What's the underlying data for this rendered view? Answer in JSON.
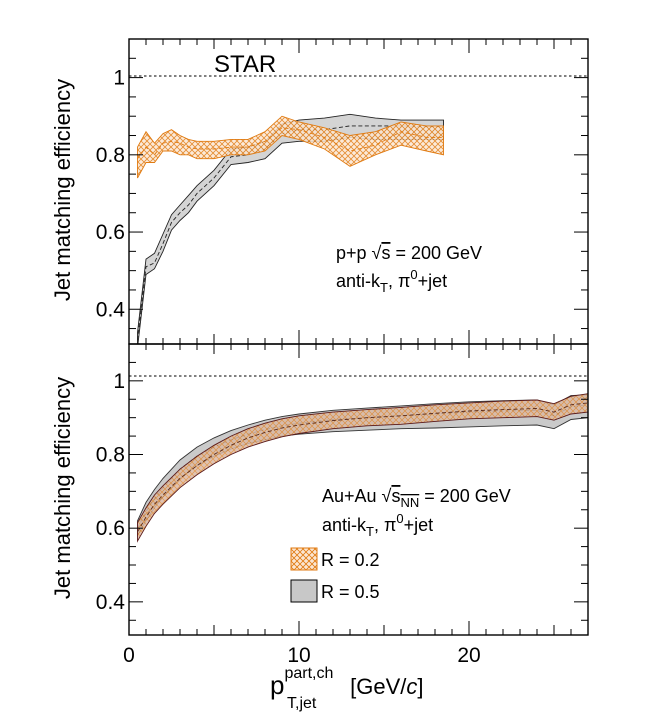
{
  "chart_data": [
    {
      "type": "area",
      "panel": "top",
      "title": "",
      "experiment_label": "STAR",
      "annotations": [
        "p+p √s = 200 GeV",
        "anti-kT, π0+jet"
      ],
      "ylabel": "Jet matching efficiency",
      "xlabel": "p_T,jet^part,ch [GeV/c]",
      "xlim": [
        0,
        27
      ],
      "ylim": [
        0.31,
        1.1
      ],
      "yticks": [
        0.4,
        0.6,
        0.8,
        1
      ],
      "yticklabels": [
        "0.4",
        "0.6",
        "0.8",
        "1"
      ],
      "reference_line": 1.0,
      "series": [
        {
          "name": "R = 0.2",
          "color": "#e07a10",
          "style": "hatched band",
          "x": [
            0.5,
            1.0,
            1.5,
            2.0,
            2.5,
            3.0,
            3.5,
            4.0,
            5.0,
            6.0,
            7.0,
            8.0,
            9.0,
            10.0,
            11.5,
            13.0,
            14.5,
            16.0,
            17.5,
            18.5
          ],
          "center": [
            0.79,
            0.82,
            0.8,
            0.83,
            0.835,
            0.83,
            0.82,
            0.815,
            0.815,
            0.82,
            0.82,
            0.835,
            0.87,
            0.865,
            0.845,
            0.81,
            0.825,
            0.86,
            0.845,
            0.845
          ],
          "low": [
            0.74,
            0.78,
            0.78,
            0.81,
            0.81,
            0.8,
            0.8,
            0.79,
            0.79,
            0.8,
            0.8,
            0.81,
            0.85,
            0.84,
            0.815,
            0.77,
            0.8,
            0.825,
            0.81,
            0.8
          ],
          "high": [
            0.82,
            0.86,
            0.83,
            0.855,
            0.865,
            0.85,
            0.84,
            0.835,
            0.835,
            0.84,
            0.84,
            0.86,
            0.9,
            0.885,
            0.87,
            0.85,
            0.86,
            0.885,
            0.875,
            0.875
          ]
        },
        {
          "name": "R = 0.5",
          "color": "#7f7f7f",
          "style": "filled band",
          "x": [
            0.5,
            1.0,
            1.5,
            2.0,
            2.5,
            3.0,
            3.5,
            4.0,
            5.0,
            6.0,
            7.0,
            8.0,
            9.0,
            10.0,
            11.5,
            13.0,
            14.5,
            16.0,
            17.5,
            18.5
          ],
          "center": [
            0.32,
            0.51,
            0.52,
            0.57,
            0.625,
            0.65,
            0.67,
            0.7,
            0.74,
            0.795,
            0.8,
            0.815,
            0.855,
            0.865,
            0.865,
            0.875,
            0.875,
            0.875,
            0.873,
            0.873
          ],
          "low": [
            0.3,
            0.49,
            0.505,
            0.55,
            0.605,
            0.63,
            0.65,
            0.68,
            0.72,
            0.775,
            0.78,
            0.79,
            0.83,
            0.835,
            0.835,
            0.845,
            0.84,
            0.84,
            0.84,
            0.84
          ],
          "high": [
            0.34,
            0.53,
            0.545,
            0.595,
            0.645,
            0.67,
            0.695,
            0.72,
            0.76,
            0.815,
            0.82,
            0.835,
            0.88,
            0.89,
            0.895,
            0.905,
            0.895,
            0.89,
            0.89,
            0.89
          ]
        }
      ]
    },
    {
      "type": "area",
      "panel": "bottom",
      "title": "",
      "annotations": [
        "Au+Au √sNN = 200 GeV",
        "anti-kT, π0+jet"
      ],
      "ylabel": "Jet matching efficiency",
      "xlabel": "p_T,jet^part,ch [GeV/c]",
      "xlim": [
        0,
        27
      ],
      "ylim": [
        0.31,
        1.1
      ],
      "yticks": [
        0.4,
        0.6,
        0.8,
        1
      ],
      "yticklabels": [
        "0.4",
        "0.6",
        "0.8",
        "1"
      ],
      "xticks": [
        0,
        10,
        20
      ],
      "xticklabels": [
        "0",
        "10",
        "20"
      ],
      "reference_line": 1.0,
      "legend": {
        "position": "bottom-center",
        "entries": [
          "R = 0.2",
          "R = 0.5"
        ]
      },
      "series": [
        {
          "name": "R = 0.2",
          "color": "#e07a10",
          "style": "hatched band",
          "x": [
            0.5,
            1,
            1.5,
            2,
            3,
            4,
            5,
            6,
            7,
            8,
            9,
            10,
            12,
            14,
            16,
            18,
            20,
            22,
            24,
            25,
            26,
            27
          ],
          "center": [
            0.59,
            0.63,
            0.665,
            0.69,
            0.735,
            0.77,
            0.8,
            0.825,
            0.845,
            0.86,
            0.872,
            0.88,
            0.892,
            0.9,
            0.905,
            0.912,
            0.918,
            0.922,
            0.925,
            0.915,
            0.935,
            0.94
          ],
          "low": [
            0.565,
            0.605,
            0.64,
            0.665,
            0.71,
            0.745,
            0.775,
            0.8,
            0.82,
            0.835,
            0.848,
            0.857,
            0.87,
            0.878,
            0.882,
            0.89,
            0.897,
            0.9,
            0.903,
            0.893,
            0.91,
            0.915
          ],
          "high": [
            0.615,
            0.655,
            0.69,
            0.715,
            0.76,
            0.795,
            0.825,
            0.85,
            0.87,
            0.885,
            0.897,
            0.905,
            0.915,
            0.922,
            0.928,
            0.935,
            0.94,
            0.945,
            0.948,
            0.938,
            0.958,
            0.965
          ]
        },
        {
          "name": "R = 0.5",
          "color": "#7f7f7f",
          "style": "filled band",
          "x": [
            0.5,
            1,
            1.5,
            2,
            3,
            4,
            5,
            6,
            7,
            8,
            9,
            10,
            12,
            14,
            16,
            18,
            20,
            22,
            24,
            25,
            26,
            27
          ],
          "center": [
            0.6,
            0.645,
            0.68,
            0.71,
            0.76,
            0.795,
            0.82,
            0.84,
            0.855,
            0.868,
            0.878,
            0.885,
            0.895,
            0.9,
            0.905,
            0.91,
            0.915,
            0.918,
            0.92,
            0.905,
            0.93,
            0.935
          ],
          "low": [
            0.58,
            0.62,
            0.655,
            0.685,
            0.735,
            0.77,
            0.795,
            0.815,
            0.83,
            0.84,
            0.85,
            0.855,
            0.862,
            0.866,
            0.87,
            0.872,
            0.875,
            0.878,
            0.88,
            0.87,
            0.895,
            0.9
          ],
          "high": [
            0.62,
            0.67,
            0.705,
            0.735,
            0.785,
            0.82,
            0.845,
            0.865,
            0.88,
            0.893,
            0.903,
            0.91,
            0.92,
            0.926,
            0.932,
            0.938,
            0.943,
            0.946,
            0.948,
            0.935,
            0.96,
            0.962
          ]
        }
      ]
    }
  ],
  "text": {
    "star": "STAR",
    "ylabel": "Jet matching efficiency",
    "pp_prefix": "p+p ",
    "sqrt_sign": "√",
    "s": "s",
    "pp_energy": " = 200 GeV",
    "anti_k": "anti-k",
    "sub_t": "T",
    "pi0_jet_prefix": ", π",
    "sup_0": "0",
    "jet_suffix": "+jet",
    "auau_prefix": "Au+Au ",
    "sub_nn": "NN",
    "auau_energy": " = 200 GeV",
    "legend_r02": "R = 0.2",
    "legend_r05": "R = 0.5",
    "xlabel_p": "p",
    "xlabel_sup": "part,ch",
    "xlabel_sub": "T,jet",
    "xlabel_unit_open": " [GeV/",
    "xlabel_c": "c",
    "xlabel_unit_close": "]"
  },
  "colors": {
    "orange": "#e07a10",
    "orange_fill": "#f6d2b2",
    "gray_fill": "#cfcfcf",
    "gray_line": "#3d3d3d",
    "dark_edge": "#5a1a1a",
    "auau_fill": "#d9b8a8"
  }
}
